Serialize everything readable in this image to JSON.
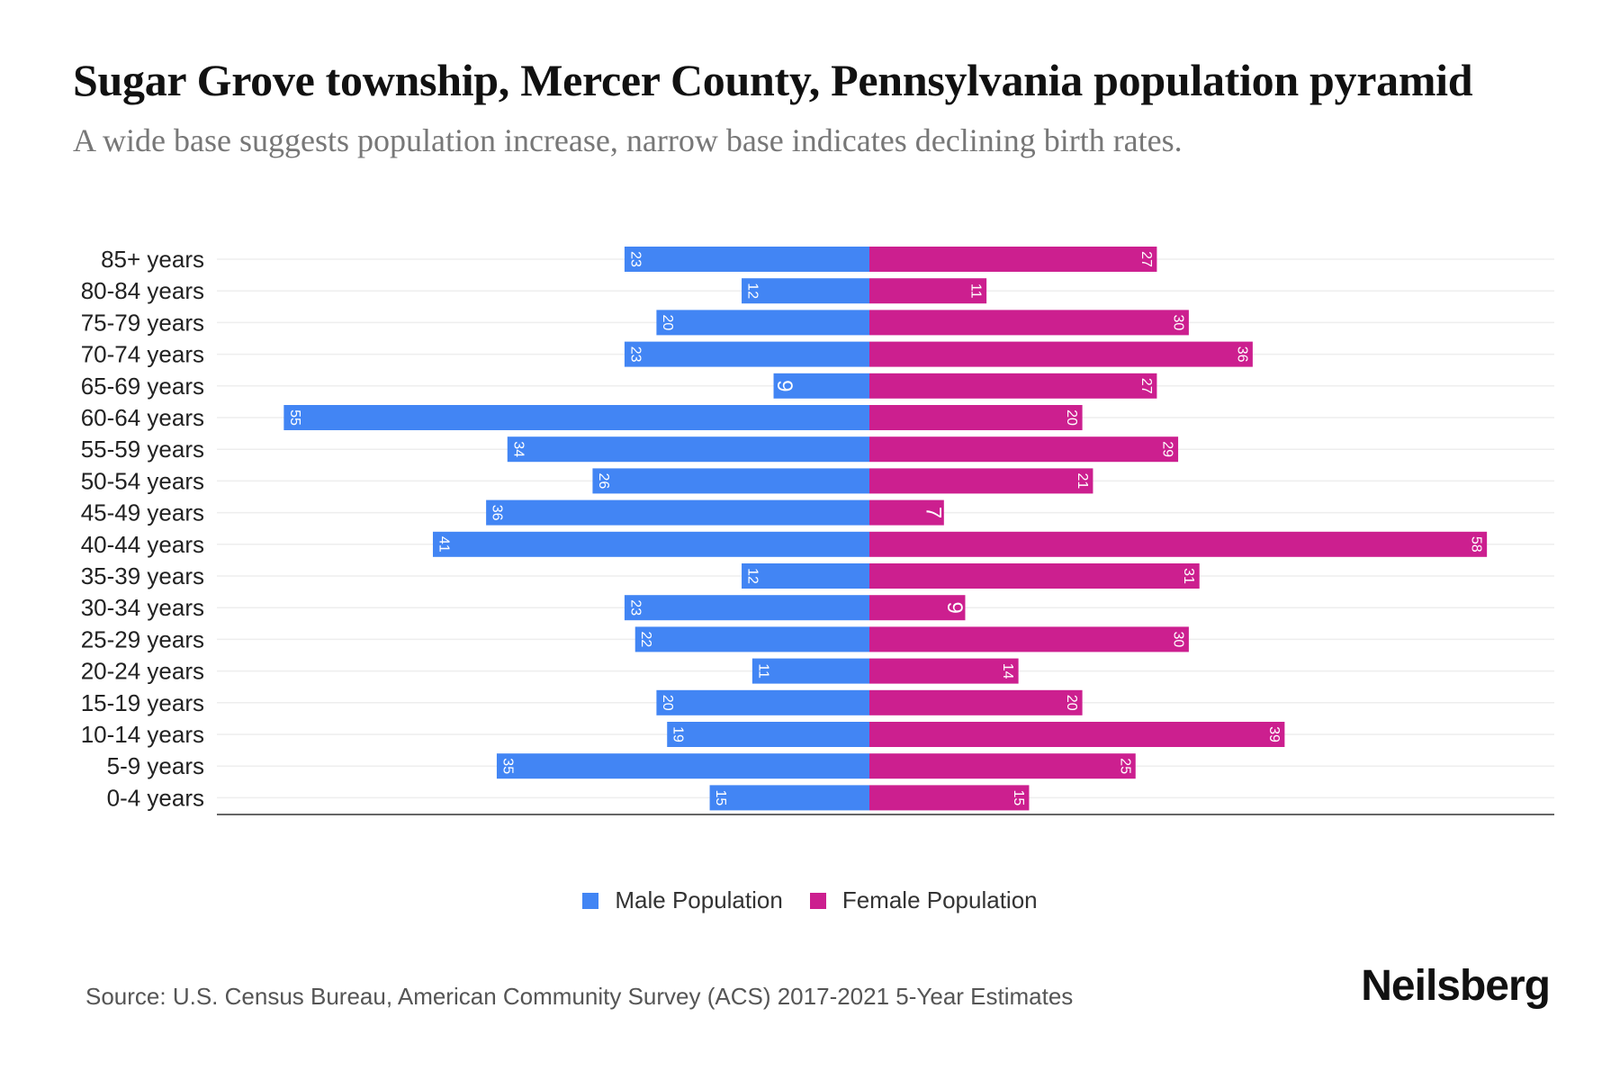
{
  "title": "Sugar Grove township, Mercer County, Pennsylvania population pyramid",
  "subtitle": "A wide base suggests population increase, narrow base indicates declining birth rates.",
  "source": "Source: U.S. Census Bureau, American Community Survey (ACS) 2017-2021 5-Year Estimates",
  "logo": "Neilsberg",
  "chart_data": {
    "type": "bar",
    "orientation": "horizontal-pyramid",
    "title": "Sugar Grove township, Mercer County, Pennsylvania population pyramid",
    "categories": [
      "85+ years",
      "80-84 years",
      "75-79 years",
      "70-74 years",
      "65-69 years",
      "60-64 years",
      "55-59 years",
      "50-54 years",
      "45-49 years",
      "40-44 years",
      "35-39 years",
      "30-34 years",
      "25-29 years",
      "20-24 years",
      "15-19 years",
      "10-14 years",
      "5-9 years",
      "0-4 years"
    ],
    "series": [
      {
        "name": "Male Population",
        "color": "#4285f4",
        "values": [
          23,
          12,
          20,
          23,
          9,
          55,
          34,
          26,
          36,
          41,
          12,
          23,
          22,
          11,
          20,
          19,
          35,
          15
        ]
      },
      {
        "name": "Female Population",
        "color": "#cc1f8f",
        "values": [
          27,
          11,
          30,
          36,
          27,
          20,
          29,
          21,
          7,
          58,
          31,
          9,
          30,
          14,
          20,
          39,
          25,
          15
        ]
      }
    ],
    "legend_position": "bottom-center",
    "grid": true
  }
}
